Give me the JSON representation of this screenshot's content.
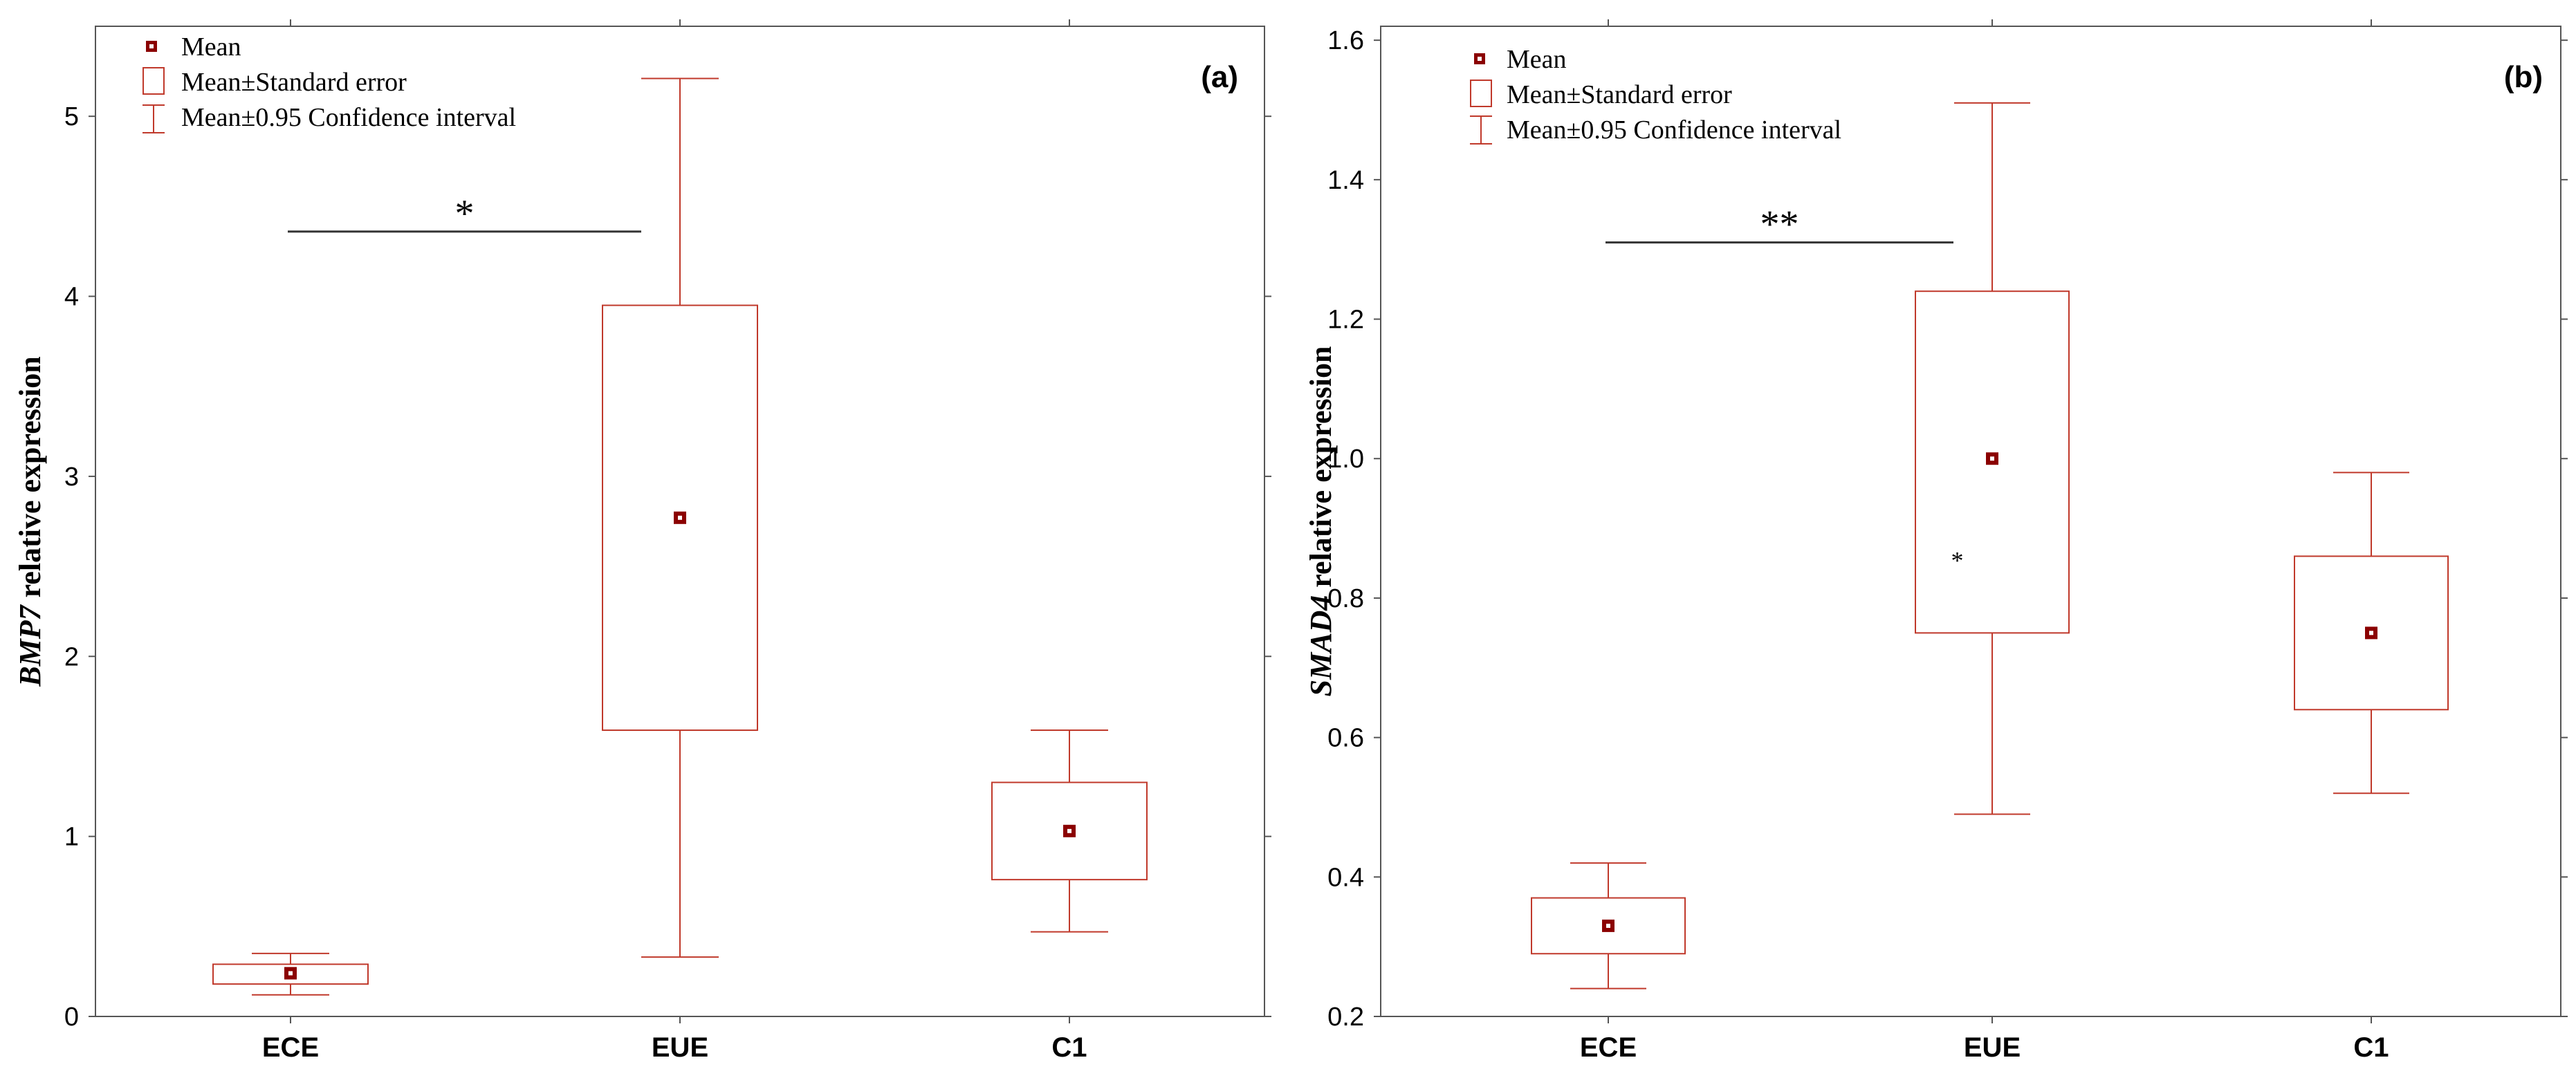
{
  "colors": {
    "series": "#c0392b",
    "mean_fill": "#8b0000",
    "axis": "#555555",
    "sig_line": "#333333"
  },
  "legend": {
    "mean": "Mean",
    "se": "Mean±Standard error",
    "ci": "Mean±0.95 Confidence interval"
  },
  "chart_data": [
    {
      "type": "box",
      "panel_label": "(a)",
      "ylabel_gene": "BMP7",
      "ylabel_rest": " relative expression",
      "categories": [
        "ECE",
        "EUE",
        "C1"
      ],
      "mean": [
        0.24,
        2.77,
        1.03
      ],
      "se_low": [
        0.18,
        1.59,
        0.76
      ],
      "se_high": [
        0.29,
        3.95,
        1.3
      ],
      "ci_low": [
        0.12,
        0.33,
        0.47
      ],
      "ci_high": [
        0.35,
        5.21,
        1.59
      ],
      "ylim": [
        0,
        5.5
      ],
      "yticks": [
        0,
        1,
        2,
        3,
        4,
        5
      ],
      "ytick_labels": [
        "0",
        "1",
        "2",
        "3",
        "4",
        "5"
      ],
      "significance": {
        "from": "ECE",
        "to": "EUE",
        "label": "*",
        "y": 4.36
      },
      "outliers": []
    },
    {
      "type": "box",
      "panel_label": "(b)",
      "ylabel_gene": "SMAD4",
      "ylabel_rest": " relative expression",
      "categories": [
        "ECE",
        "EUE",
        "C1"
      ],
      "mean": [
        0.33,
        1.0,
        0.75
      ],
      "se_low": [
        0.29,
        0.75,
        0.64
      ],
      "se_high": [
        0.37,
        1.24,
        0.86
      ],
      "ci_low": [
        0.24,
        0.49,
        0.52
      ],
      "ci_high": [
        0.42,
        1.51,
        0.98
      ],
      "ylim": [
        0.2,
        1.62
      ],
      "yticks": [
        0.2,
        0.4,
        0.6,
        0.8,
        1.0,
        1.2,
        1.4,
        1.6
      ],
      "ytick_labels": [
        "0.2",
        "0.4",
        "0.6",
        "0.8",
        "1.0",
        "1.2",
        "1.4",
        "1.6"
      ],
      "significance": {
        "from": "ECE",
        "to": "EUE",
        "label": "**",
        "y": 1.31
      },
      "outliers": [
        {
          "category": "EUE",
          "offset": -0.3,
          "y": 0.86,
          "label": "*"
        }
      ]
    }
  ]
}
